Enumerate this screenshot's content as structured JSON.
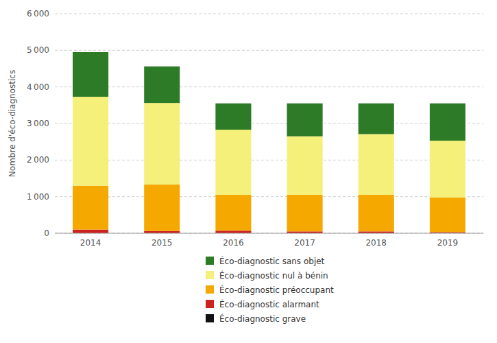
{
  "chart_data": {
    "type": "bar",
    "stacked": true,
    "categories": [
      "2014",
      "2015",
      "2016",
      "2017",
      "2018",
      "2019"
    ],
    "series": [
      {
        "name": "Éco-diagnostic grave",
        "color": "#111111",
        "values": [
          0,
          0,
          0,
          0,
          0,
          0
        ]
      },
      {
        "name": "Éco-diagnostic alarmant",
        "color": "#cc2222",
        "values": [
          100,
          60,
          70,
          50,
          50,
          30
        ]
      },
      {
        "name": "Éco-diagnostic préoccupant",
        "color": "#f5a800",
        "values": [
          1200,
          1270,
          980,
          1000,
          1000,
          950
        ]
      },
      {
        "name": "Éco-diagnostic nul à bénin",
        "color": "#f5f07a",
        "values": [
          2430,
          2230,
          1780,
          1600,
          1660,
          1550
        ]
      },
      {
        "name": "Éco-diagnostic sans objet",
        "color": "#2d7a27",
        "values": [
          1220,
          1000,
          720,
          900,
          840,
          1020
        ]
      }
    ],
    "y_label": "Nombre d'éco-diagnostics",
    "ylim": [
      0,
      6000
    ],
    "yticks": [
      0,
      {
        "value": 1000,
        "label": "1 000"
      },
      {
        "value": 2000,
        "label": "2 000"
      },
      {
        "value": 3000,
        "label": "3 000"
      },
      {
        "value": 4000,
        "label": "4 000"
      },
      {
        "value": 5000,
        "label": "5 000"
      },
      {
        "value": 6000,
        "label": "6 000"
      }
    ],
    "grid": true,
    "legend": "bottom"
  }
}
